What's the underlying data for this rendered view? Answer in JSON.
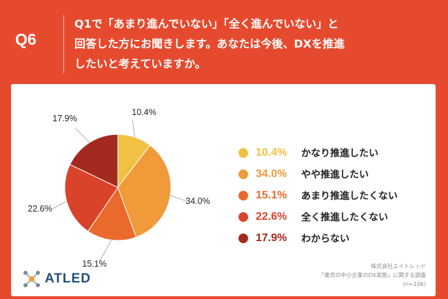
{
  "header": {
    "tag": "Q6",
    "lines": [
      "Q1で「あまり進んでいない」「全く進んでいない」と",
      "回答した方にお聞きします。あなたは今後、DXを推進",
      "したいと考えていますか。"
    ]
  },
  "chart_data": {
    "type": "pie",
    "categories": [
      "かなり推進したい",
      "やや推進したい",
      "あまり推進したくない",
      "全く推進したくない",
      "わからない"
    ],
    "values": [
      10.4,
      34.0,
      15.1,
      22.6,
      17.9
    ],
    "labels": [
      "10.4%",
      "34.0%",
      "15.1%",
      "22.6%",
      "17.9%"
    ],
    "colors": [
      "#f2c144",
      "#f09a3a",
      "#ea6a2c",
      "#d9432a",
      "#a32a1e"
    ],
    "start": "12 o'clock",
    "direction": "clockwise",
    "legend": "right"
  },
  "slice_labels": [
    "10.4%",
    "34.0%",
    "15.1%",
    "22.6%",
    "17.9%"
  ],
  "source": {
    "lines": [
      "株式会社エイトレッド",
      "「東京の中小企業のDX実態」に関する調査",
      "(n=106)"
    ]
  },
  "logo": {
    "text": "ATLED"
  }
}
